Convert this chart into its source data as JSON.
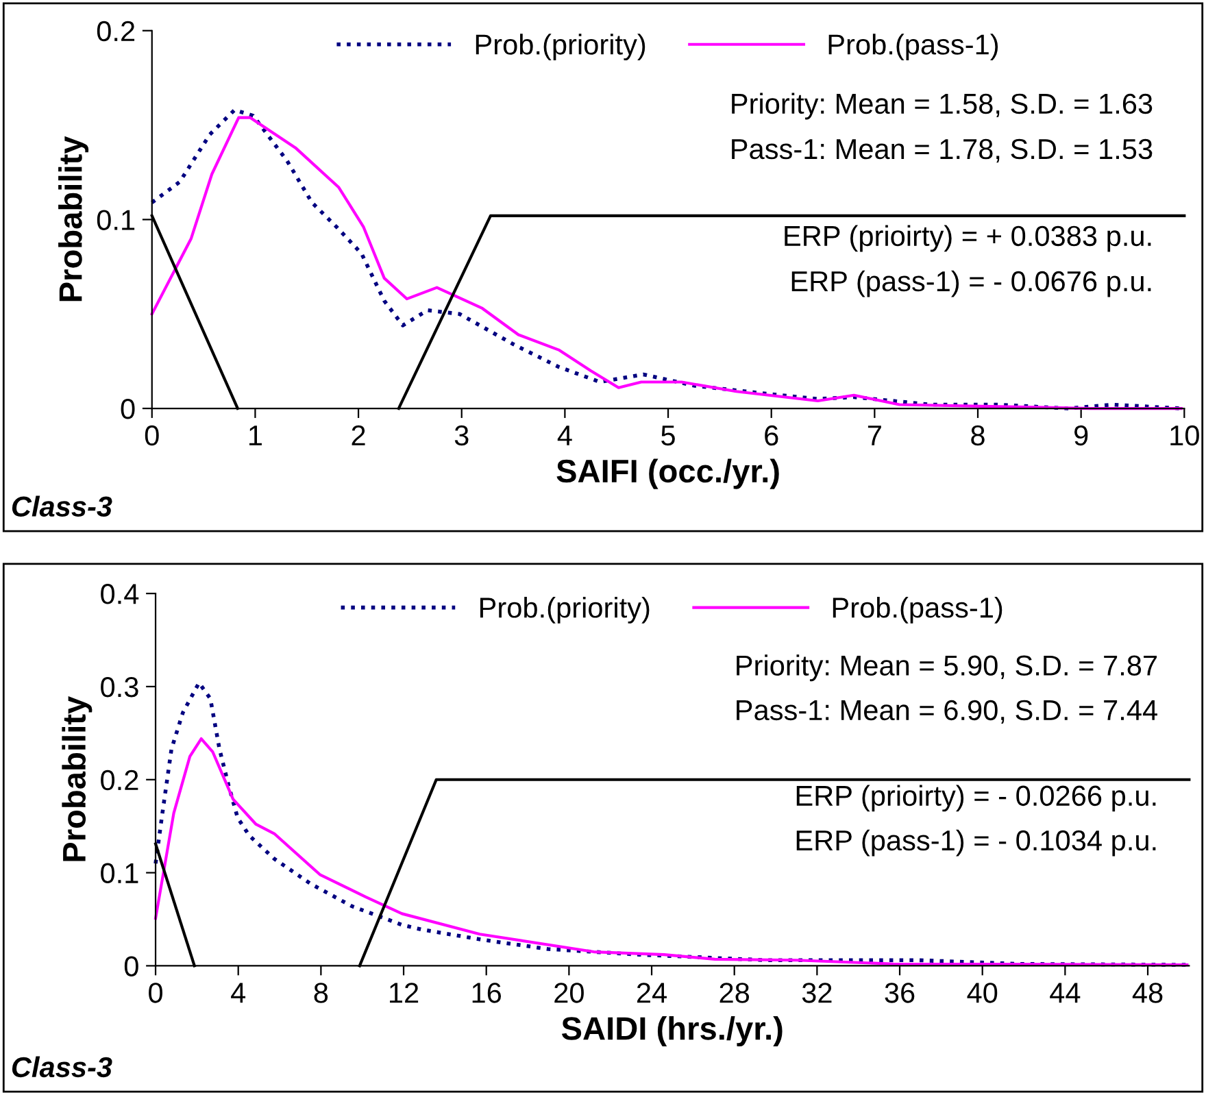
{
  "chart_data": [
    {
      "type": "line",
      "xlabel": "SAIFI (occ./yr.)",
      "ylabel": "Probability",
      "xlim": [
        0,
        10
      ],
      "xticks": [
        0,
        1,
        2,
        3,
        4,
        5,
        6,
        7,
        8,
        9,
        10
      ],
      "ylim": [
        0,
        0.2
      ],
      "yticks": [
        0,
        0.1,
        0.2
      ],
      "grid": false,
      "legend": "top",
      "marker": "none",
      "annotations": [
        "Priority: Mean = 1.58, S.D. = 1.63",
        "Pass-1: Mean = 1.78, S.D. = 1.53",
        "ERP (prioirty) = + 0.0383 p.u.",
        "ERP (pass-1) = - 0.0676 p.u.",
        "Class-3"
      ],
      "series": [
        {
          "name": "Prob.(priority)",
          "color": "#000080",
          "line_style": "dotted",
          "x": [
            0,
            0.27,
            0.56,
            0.8,
            0.98,
            1.31,
            1.55,
            1.79,
            2.03,
            2.25,
            2.43,
            2.67,
            2.98,
            3.5,
            3.94,
            4.34,
            4.76,
            5.26,
            5.92,
            6.45,
            6.8,
            7.55,
            8.2,
            8.87,
            9.31,
            9.97
          ],
          "values": [
            0.109,
            0.12,
            0.145,
            0.158,
            0.155,
            0.131,
            0.109,
            0.096,
            0.082,
            0.057,
            0.044,
            0.052,
            0.05,
            0.034,
            0.022,
            0.014,
            0.018,
            0.012,
            0.008,
            0.005,
            0.006,
            0.002,
            0.002,
            0.0,
            0.002,
            0.0
          ]
        },
        {
          "name": "Prob.(pass-1)",
          "color": "#ff00ff",
          "line_style": "solid",
          "x": [
            0,
            0.38,
            0.58,
            0.84,
            0.95,
            1.39,
            1.81,
            2.05,
            2.25,
            2.47,
            2.76,
            3.2,
            3.55,
            3.94,
            4.25,
            4.52,
            4.74,
            5.13,
            5.66,
            6.45,
            6.8,
            7.24,
            8.21,
            9.09,
            9.97
          ],
          "values": [
            0.05,
            0.09,
            0.124,
            0.154,
            0.154,
            0.138,
            0.117,
            0.096,
            0.069,
            0.058,
            0.064,
            0.053,
            0.039,
            0.031,
            0.02,
            0.011,
            0.014,
            0.014,
            0.009,
            0.004,
            0.007,
            0.002,
            0.001,
            0.0,
            0.0
          ]
        },
        {
          "color": "#000000",
          "line_style": "solid",
          "x": [
            0,
            0.83
          ],
          "values": [
            0.102,
            0
          ]
        },
        {
          "color": "#000000",
          "line_style": "solid",
          "x": [
            2.39,
            3.28,
            10
          ],
          "values": [
            0,
            0.102,
            0.102
          ]
        }
      ]
    },
    {
      "type": "line",
      "xlabel": "SAIDI (hrs./yr.)",
      "ylabel": "Probability",
      "xlim": [
        0,
        50
      ],
      "xticks": [
        0,
        4,
        8,
        12,
        16,
        20,
        24,
        28,
        32,
        36,
        40,
        44,
        48
      ],
      "ylim": [
        0,
        0.4
      ],
      "yticks": [
        0,
        0.1,
        0.2,
        0.3,
        0.4
      ],
      "grid": false,
      "legend": "top",
      "marker": "none",
      "annotations": [
        "Priority: Mean = 5.90, S.D. = 7.87",
        "Pass-1: Mean = 6.90, S.D. = 7.44",
        "ERP (prioirty) = - 0.0266 p.u.",
        "ERP (pass-1) = - 0.1034 p.u.",
        "Class-3"
      ],
      "series": [
        {
          "name": "Prob.(priority)",
          "color": "#000080",
          "line_style": "dotted",
          "x": [
            0,
            0.33,
            0.77,
            1.32,
            2.1,
            2.65,
            3.09,
            3.53,
            3.97,
            4.53,
            5.74,
            7.51,
            9.5,
            11.92,
            12.86,
            15.8,
            18.99,
            23.4,
            29.56,
            36.9,
            41.8,
            49.9
          ],
          "values": [
            0.11,
            0.164,
            0.233,
            0.272,
            0.304,
            0.287,
            0.233,
            0.194,
            0.159,
            0.14,
            0.115,
            0.088,
            0.064,
            0.044,
            0.039,
            0.028,
            0.018,
            0.012,
            0.006,
            0.006,
            0.002,
            0.001
          ]
        },
        {
          "name": "Prob.(pass-1)",
          "color": "#ff00ff",
          "line_style": "solid",
          "x": [
            0,
            0.88,
            1.66,
            2.21,
            2.76,
            3.75,
            4.86,
            5.74,
            7.95,
            10.16,
            11.92,
            15.68,
            21.2,
            24.6,
            27.06,
            31.0,
            35.7,
            49.9
          ],
          "values": [
            0.051,
            0.164,
            0.225,
            0.244,
            0.23,
            0.179,
            0.152,
            0.142,
            0.098,
            0.074,
            0.056,
            0.034,
            0.015,
            0.012,
            0.007,
            0.006,
            0.002,
            0.001
          ]
        },
        {
          "color": "#000000",
          "line_style": "solid",
          "x": [
            0,
            1.88
          ],
          "values": [
            0.131,
            0
          ]
        },
        {
          "color": "#000000",
          "line_style": "solid",
          "x": [
            9.87,
            13.58,
            50
          ],
          "values": [
            0,
            0.2,
            0.2
          ]
        }
      ]
    }
  ]
}
